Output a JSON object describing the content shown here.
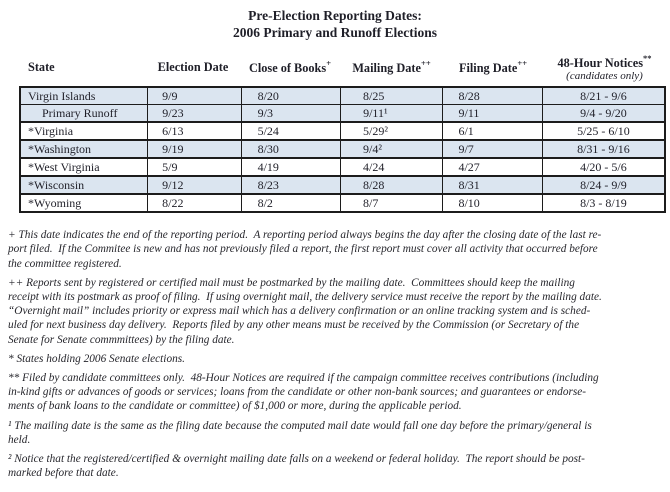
{
  "title": {
    "line1": "Pre-Election Reporting Dates:",
    "line2": "2006 Primary and Runoff Elections"
  },
  "table": {
    "columns": [
      {
        "label": "State",
        "sup": "",
        "sub": ""
      },
      {
        "label": "Election Date",
        "sup": "",
        "sub": ""
      },
      {
        "label": "Close of Books",
        "sup": "+",
        "sub": ""
      },
      {
        "label": "Mailing Date",
        "sup": "++",
        "sub": ""
      },
      {
        "label": "Filing Date",
        "sup": "++",
        "sub": ""
      },
      {
        "label": "48-Hour Notices",
        "sup": "**",
        "sub": "(candidates only)"
      }
    ],
    "rows": [
      {
        "state": "Virgin Islands",
        "indent": false,
        "shaded": true,
        "group_start": false,
        "cells": [
          "9/9",
          "8/20",
          "8/25",
          "8/28",
          "8/21 - 9/6"
        ]
      },
      {
        "state": "Primary Runoff",
        "indent": true,
        "shaded": true,
        "group_start": false,
        "cells": [
          "9/23",
          "9/3",
          "9/11¹",
          "9/11",
          "9/4 - 9/20"
        ]
      },
      {
        "state": "*Virginia",
        "indent": false,
        "shaded": false,
        "group_start": true,
        "cells": [
          "6/13",
          "5/24",
          "5/29²",
          "6/1",
          "5/25 - 6/10"
        ]
      },
      {
        "state": "*Washington",
        "indent": false,
        "shaded": true,
        "group_start": true,
        "cells": [
          "9/19",
          "8/30",
          "9/4²",
          "9/7",
          "8/31 - 9/16"
        ]
      },
      {
        "state": "*West Virginia",
        "indent": false,
        "shaded": false,
        "group_start": true,
        "cells": [
          "5/9",
          "4/19",
          "4/24",
          "4/27",
          "4/20 - 5/6"
        ]
      },
      {
        "state": "*Wisconsin",
        "indent": false,
        "shaded": true,
        "group_start": true,
        "cells": [
          "9/12",
          "8/23",
          "8/28",
          "8/31",
          "8/24 - 9/9"
        ]
      },
      {
        "state": "*Wyoming",
        "indent": false,
        "shaded": false,
        "group_start": true,
        "cells": [
          "8/22",
          "8/2",
          "8/7",
          "8/10",
          "8/3 - 8/19"
        ]
      }
    ]
  },
  "footnotes": [
    {
      "marker": "+",
      "lines": [
        "+ This date indicates the end of the reporting period.  A reporting period always begins the day after the closing date of the last re-",
        "port filed.  If the Commitee is new and has not previously filed a report, the first report must cover all activity that occurred before",
        "the committee registered."
      ]
    },
    {
      "marker": "++",
      "lines": [
        "++ Reports sent by registered or certified mail must be postmarked by the mailing date.  Committees should keep the mailing",
        "receipt with its postmark as proof of filing.  If using overnight mail, the delivery service must receive the report by the mailing date.",
        "“Overnight mail” includes priority or express mail which has a delivery confirmation or an online tracking system and is sched-",
        "uled for next business day delivery.  Reports filed by any other means must be received by the Commission (or Secretary of the",
        "Senate for Senate commmittees) by the filing date."
      ]
    },
    {
      "marker": "*",
      "lines": [
        "* States holding 2006 Senate elections."
      ]
    },
    {
      "marker": "**",
      "lines": [
        "** Filed by candidate committees only.  48-Hour Notices are required if the campaign committee receives contributions (including",
        "in-kind gifts or advances of goods or services; loans from the candidate or other non-bank sources; and guarantees or endorse-",
        "ments of bank loans to the candidate or committee) of $1,000 or more, during the applicable period."
      ]
    },
    {
      "marker": "1",
      "lines": [
        "¹ The mailing date is the same as the filing date because the computed mail date would fall one day before the primary/general is",
        "held."
      ]
    },
    {
      "marker": "2",
      "lines": [
        "² Notice that the registered/certified & overnight mailing date falls on a weekend or federal holiday.  The report should be post-",
        "marked before that date."
      ]
    }
  ],
  "colors": {
    "row_shade": "#dbe5f0",
    "border": "#1c1c1c",
    "text": "#1f1f28",
    "footnote_text": "#26262c"
  }
}
